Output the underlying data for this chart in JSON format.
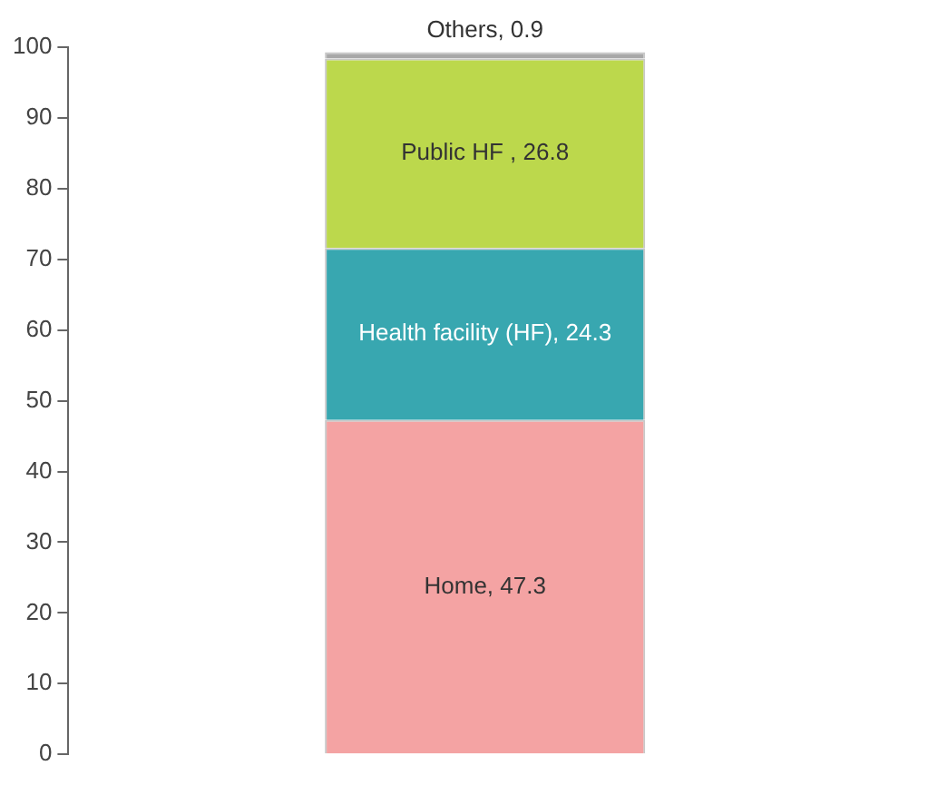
{
  "chart_data": {
    "type": "bar",
    "stacked": true,
    "categories": [
      null
    ],
    "series": [
      {
        "color": "#f4a3a3",
        "values": [
          47.3
        ],
        "value_labels": [
          "Home, 47.3"
        ]
      },
      {
        "color": "#38a7b0",
        "values": [
          24.3
        ],
        "value_labels": [
          "Health facility (HF), 24.3"
        ]
      },
      {
        "color": "#bcd84c",
        "values": [
          26.8
        ],
        "value_labels": [
          "Public HF , 26.8"
        ]
      },
      {
        "color": "#a8a8a8",
        "values": [
          0.9
        ],
        "value_labels": [
          "Others, 0.9"
        ]
      }
    ],
    "ylim": [
      0,
      100
    ],
    "yticks": [
      0,
      10,
      20,
      30,
      40,
      50,
      60,
      70,
      80,
      90,
      100
    ],
    "grid": false,
    "legend": false
  }
}
